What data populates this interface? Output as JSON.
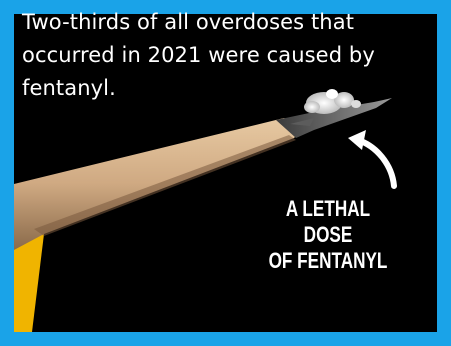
{
  "caption": {
    "text": "Two-thirds of all overdoses that occurred in 2021 were caused by fentanyl."
  },
  "overlay": {
    "line1": "A LETHAL DOSE",
    "line2": "OF FENTANYL"
  },
  "colors": {
    "frame": "#1aa3e8",
    "background": "#000000",
    "text": "#ffffff",
    "pencil_wood": "#d6b48c",
    "pencil_paint": "#f0b400",
    "powder": "#f2f2f2"
  },
  "icons": {
    "arrow": "curved-arrow-icon"
  }
}
